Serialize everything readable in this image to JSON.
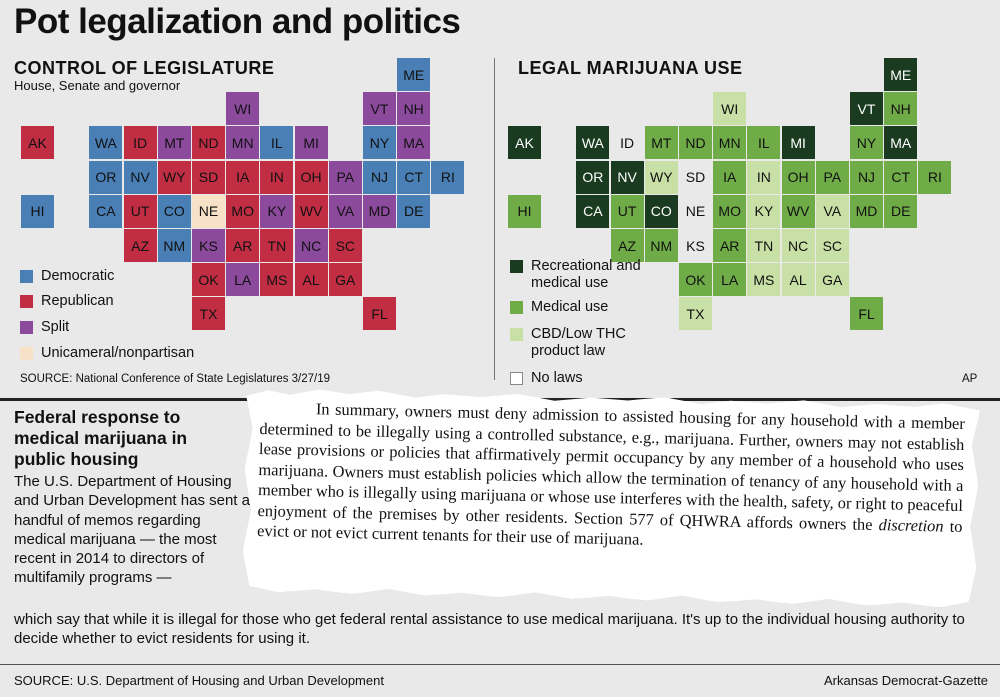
{
  "title": "Pot legalization and politics",
  "colors": {
    "democratic": "#4a7fb5",
    "republican": "#c12e43",
    "split": "#8c4a9c",
    "unicameral": "#f7e2c8",
    "recreational": "#1a3b1f",
    "medical": "#6fac47",
    "cbd": "#c8dfa6",
    "nolaws": "#ffffff"
  },
  "left": {
    "title": "CONTROL OF LEGISLATURE",
    "subtitle": "House, Senate and governor",
    "legend": [
      {
        "label": "Democratic",
        "key": "democratic"
      },
      {
        "label": "Republican",
        "key": "republican"
      },
      {
        "label": "Split",
        "key": "split"
      },
      {
        "label": "Unicameral/nonpartisan",
        "key": "unicameral"
      }
    ],
    "source": "SOURCE: National Conference of State Legislatures 3/27/19"
  },
  "right": {
    "title": "LEGAL MARIJUANA USE",
    "legend": [
      {
        "label": "Recreational and medical use",
        "key": "recreational"
      },
      {
        "label": "Medical use",
        "key": "medical"
      },
      {
        "label": "CBD/Low THC product law",
        "key": "cbd"
      },
      {
        "label": "No laws",
        "key": "nolaws"
      }
    ],
    "credit": "AP"
  },
  "states": [
    {
      "abbr": "ME",
      "row": 0,
      "col": 11,
      "party": "democratic",
      "use": "recreational"
    },
    {
      "abbr": "WI",
      "row": 1,
      "col": 6,
      "party": "split",
      "use": "cbd"
    },
    {
      "abbr": "VT",
      "row": 1,
      "col": 10,
      "party": "split",
      "use": "recreational"
    },
    {
      "abbr": "NH",
      "row": 1,
      "col": 11,
      "party": "split",
      "use": "medical"
    },
    {
      "abbr": "AK",
      "row": 2,
      "col": 0,
      "party": "republican",
      "use": "recreational"
    },
    {
      "abbr": "WA",
      "row": 2,
      "col": 2,
      "party": "democratic",
      "use": "recreational"
    },
    {
      "abbr": "ID",
      "row": 2,
      "col": 3,
      "party": "republican",
      "use": "nolaws"
    },
    {
      "abbr": "MT",
      "row": 2,
      "col": 4,
      "party": "split",
      "use": "medical"
    },
    {
      "abbr": "ND",
      "row": 2,
      "col": 5,
      "party": "republican",
      "use": "medical"
    },
    {
      "abbr": "MN",
      "row": 2,
      "col": 6,
      "party": "split",
      "use": "medical"
    },
    {
      "abbr": "IL",
      "row": 2,
      "col": 7,
      "party": "democratic",
      "use": "medical"
    },
    {
      "abbr": "MI",
      "row": 2,
      "col": 8,
      "party": "split",
      "use": "recreational"
    },
    {
      "abbr": "NY",
      "row": 2,
      "col": 10,
      "party": "democratic",
      "use": "medical"
    },
    {
      "abbr": "MA",
      "row": 2,
      "col": 11,
      "party": "split",
      "use": "recreational"
    },
    {
      "abbr": "OR",
      "row": 3,
      "col": 2,
      "party": "democratic",
      "use": "recreational"
    },
    {
      "abbr": "NV",
      "row": 3,
      "col": 3,
      "party": "democratic",
      "use": "recreational"
    },
    {
      "abbr": "WY",
      "row": 3,
      "col": 4,
      "party": "republican",
      "use": "cbd"
    },
    {
      "abbr": "SD",
      "row": 3,
      "col": 5,
      "party": "republican",
      "use": "nolaws"
    },
    {
      "abbr": "IA",
      "row": 3,
      "col": 6,
      "party": "republican",
      "use": "medical"
    },
    {
      "abbr": "IN",
      "row": 3,
      "col": 7,
      "party": "republican",
      "use": "cbd"
    },
    {
      "abbr": "OH",
      "row": 3,
      "col": 8,
      "party": "republican",
      "use": "medical"
    },
    {
      "abbr": "PA",
      "row": 3,
      "col": 9,
      "party": "split",
      "use": "medical"
    },
    {
      "abbr": "NJ",
      "row": 3,
      "col": 10,
      "party": "democratic",
      "use": "medical"
    },
    {
      "abbr": "CT",
      "row": 3,
      "col": 11,
      "party": "democratic",
      "use": "medical"
    },
    {
      "abbr": "RI",
      "row": 3,
      "col": 12,
      "party": "democratic",
      "use": "medical"
    },
    {
      "abbr": "HI",
      "row": 4,
      "col": 0,
      "party": "democratic",
      "use": "medical"
    },
    {
      "abbr": "CA",
      "row": 4,
      "col": 2,
      "party": "democratic",
      "use": "recreational"
    },
    {
      "abbr": "UT",
      "row": 4,
      "col": 3,
      "party": "republican",
      "use": "medical"
    },
    {
      "abbr": "CO",
      "row": 4,
      "col": 4,
      "party": "democratic",
      "use": "recreational"
    },
    {
      "abbr": "NE",
      "row": 4,
      "col": 5,
      "party": "unicameral",
      "use": "nolaws"
    },
    {
      "abbr": "MO",
      "row": 4,
      "col": 6,
      "party": "republican",
      "use": "medical"
    },
    {
      "abbr": "KY",
      "row": 4,
      "col": 7,
      "party": "split",
      "use": "cbd"
    },
    {
      "abbr": "WV",
      "row": 4,
      "col": 8,
      "party": "republican",
      "use": "medical"
    },
    {
      "abbr": "VA",
      "row": 4,
      "col": 9,
      "party": "split",
      "use": "cbd"
    },
    {
      "abbr": "MD",
      "row": 4,
      "col": 10,
      "party": "split",
      "use": "medical"
    },
    {
      "abbr": "DE",
      "row": 4,
      "col": 11,
      "party": "democratic",
      "use": "medical"
    },
    {
      "abbr": "AZ",
      "row": 5,
      "col": 3,
      "party": "republican",
      "use": "medical"
    },
    {
      "abbr": "NM",
      "row": 5,
      "col": 4,
      "party": "democratic",
      "use": "medical"
    },
    {
      "abbr": "KS",
      "row": 5,
      "col": 5,
      "party": "split",
      "use": "nolaws"
    },
    {
      "abbr": "AR",
      "row": 5,
      "col": 6,
      "party": "republican",
      "use": "medical"
    },
    {
      "abbr": "TN",
      "row": 5,
      "col": 7,
      "party": "republican",
      "use": "cbd"
    },
    {
      "abbr": "NC",
      "row": 5,
      "col": 8,
      "party": "split",
      "use": "cbd"
    },
    {
      "abbr": "SC",
      "row": 5,
      "col": 9,
      "party": "republican",
      "use": "cbd"
    },
    {
      "abbr": "OK",
      "row": 6,
      "col": 5,
      "party": "republican",
      "use": "medical"
    },
    {
      "abbr": "LA",
      "row": 6,
      "col": 6,
      "party": "split",
      "use": "medical"
    },
    {
      "abbr": "MS",
      "row": 6,
      "col": 7,
      "party": "republican",
      "use": "cbd"
    },
    {
      "abbr": "AL",
      "row": 6,
      "col": 8,
      "party": "republican",
      "use": "cbd"
    },
    {
      "abbr": "GA",
      "row": 6,
      "col": 9,
      "party": "republican",
      "use": "cbd"
    },
    {
      "abbr": "TX",
      "row": 7,
      "col": 5,
      "party": "republican",
      "use": "cbd"
    },
    {
      "abbr": "FL",
      "row": 7,
      "col": 10,
      "party": "republican",
      "use": "medical"
    }
  ],
  "federal": {
    "heading": "Federal response to medical marijuana in public housing",
    "body": "The U.S. Department of Housing and Urban Development has sent a handful of memos regarding medical marijuana — the most recent in 2014 to directors of multifamily programs —",
    "tail": "which say that while it is illegal for those who get federal rental assistance to use medical marijuana. It's up to the individual housing authority to decide whether to evict residents for using it."
  },
  "memo": {
    "part1": "In summary, owners must deny admission to assisted housing for any household with a member determined to be illegally using a controlled substance, e.g., marijuana. Further, owners may not establish lease provisions or policies that affirmatively permit occupancy by any member of a household who uses marijuana. Owners must establish policies which allow the termination of tenancy of any household with a member who is illegally using marijuana or whose use interferes with the health, safety, or right to peaceful enjoyment of the premises by other residents. Section 577 of QHWRA affords owners the ",
    "emph": "discretion",
    "part2": " to evict or not evict current tenants for their use of marijuana."
  },
  "footer": {
    "source": "SOURCE: U.S. Department of Housing and Urban Development",
    "credit": "Arkansas Democrat-Gazette"
  }
}
